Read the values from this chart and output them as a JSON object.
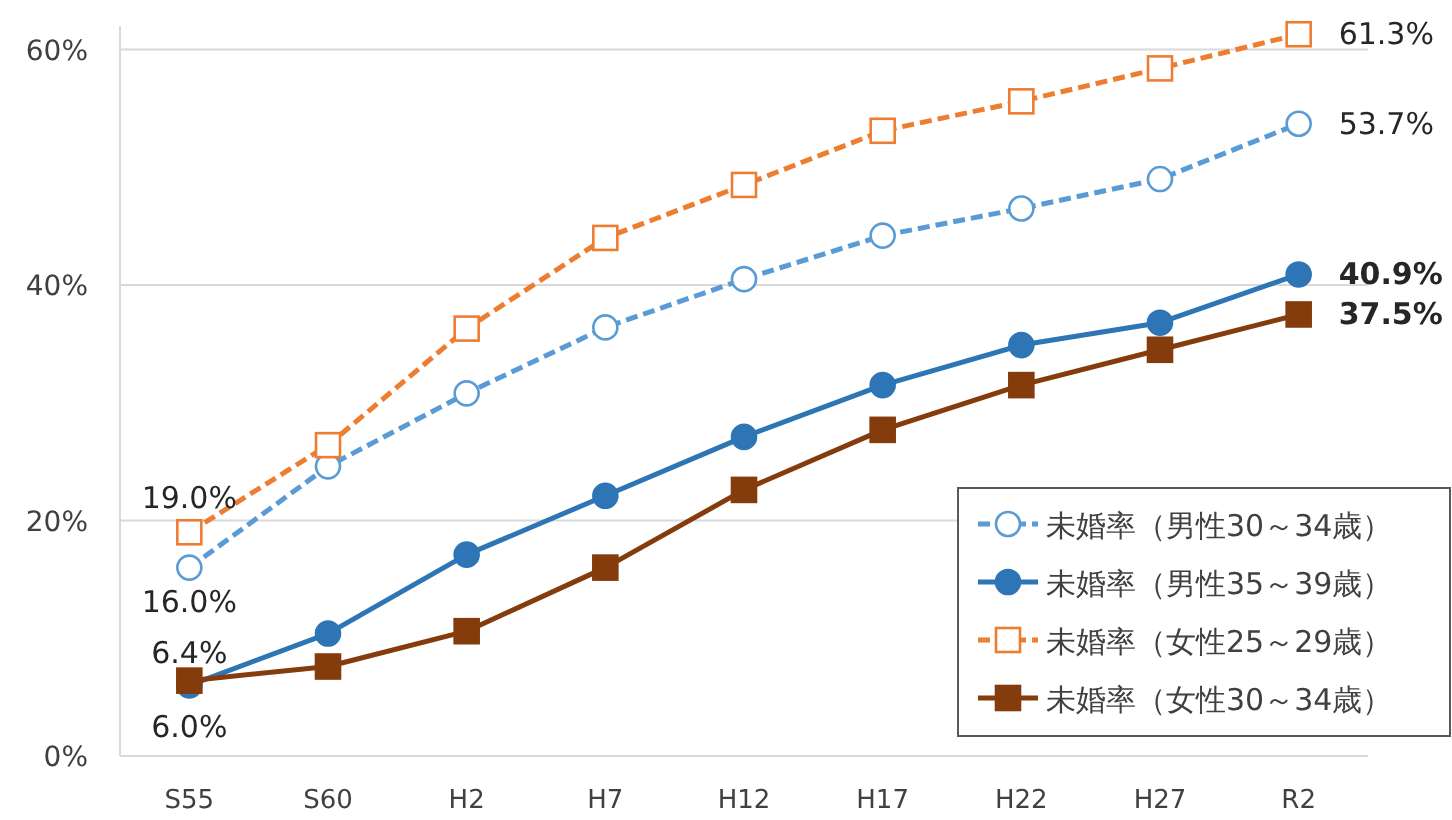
{
  "chart_data": {
    "type": "line",
    "categories": [
      "S55",
      "S60",
      "H2",
      "H7",
      "H12",
      "H17",
      "H22",
      "H27",
      "R2"
    ],
    "ylim": [
      0,
      62
    ],
    "yticks": [
      {
        "value": 0,
        "label": "0%"
      },
      {
        "value": 20,
        "label": "20%"
      },
      {
        "value": 40,
        "label": "40%"
      },
      {
        "value": 60,
        "label": "60%"
      }
    ],
    "grid": "y",
    "legend": "bottom right",
    "series": [
      {
        "name": "未婚率（男性30～34歳）",
        "color": "#5b9bd5",
        "line_style": "dashed",
        "marker": "circle",
        "values": [
          16.0,
          24.6,
          30.8,
          36.4,
          40.5,
          44.2,
          46.5,
          49.0,
          53.7
        ],
        "value_labels": [
          "16.0%",
          null,
          null,
          null,
          null,
          null,
          null,
          null,
          "53.7%"
        ]
      },
      {
        "name": "未婚率（男性35～39歳）",
        "color": "#2e75b6",
        "line_style": "solid",
        "marker": "circle",
        "values": [
          6.0,
          10.4,
          17.1,
          22.1,
          27.1,
          31.5,
          34.9,
          36.8,
          40.9
        ],
        "value_labels": [
          "6.0%",
          null,
          null,
          null,
          null,
          null,
          null,
          null,
          "40.9%"
        ]
      },
      {
        "name": "未婚率（女性25～29歳）",
        "color": "#ed7d31",
        "line_style": "dashed",
        "marker": "square",
        "values": [
          19.0,
          26.4,
          36.3,
          44.0,
          48.5,
          53.1,
          55.6,
          58.4,
          61.3
        ],
        "value_labels": [
          "19.0%",
          null,
          null,
          null,
          null,
          null,
          null,
          null,
          "61.3%"
        ]
      },
      {
        "name": "未婚率（女性30～34歳）",
        "color": "#843c0c",
        "line_style": "solid",
        "marker": "square",
        "values": [
          6.4,
          7.6,
          10.6,
          16.0,
          22.6,
          27.7,
          31.5,
          34.5,
          37.5
        ],
        "value_labels": [
          "6.4%",
          null,
          null,
          null,
          null,
          null,
          null,
          null,
          "37.5%"
        ]
      }
    ]
  }
}
